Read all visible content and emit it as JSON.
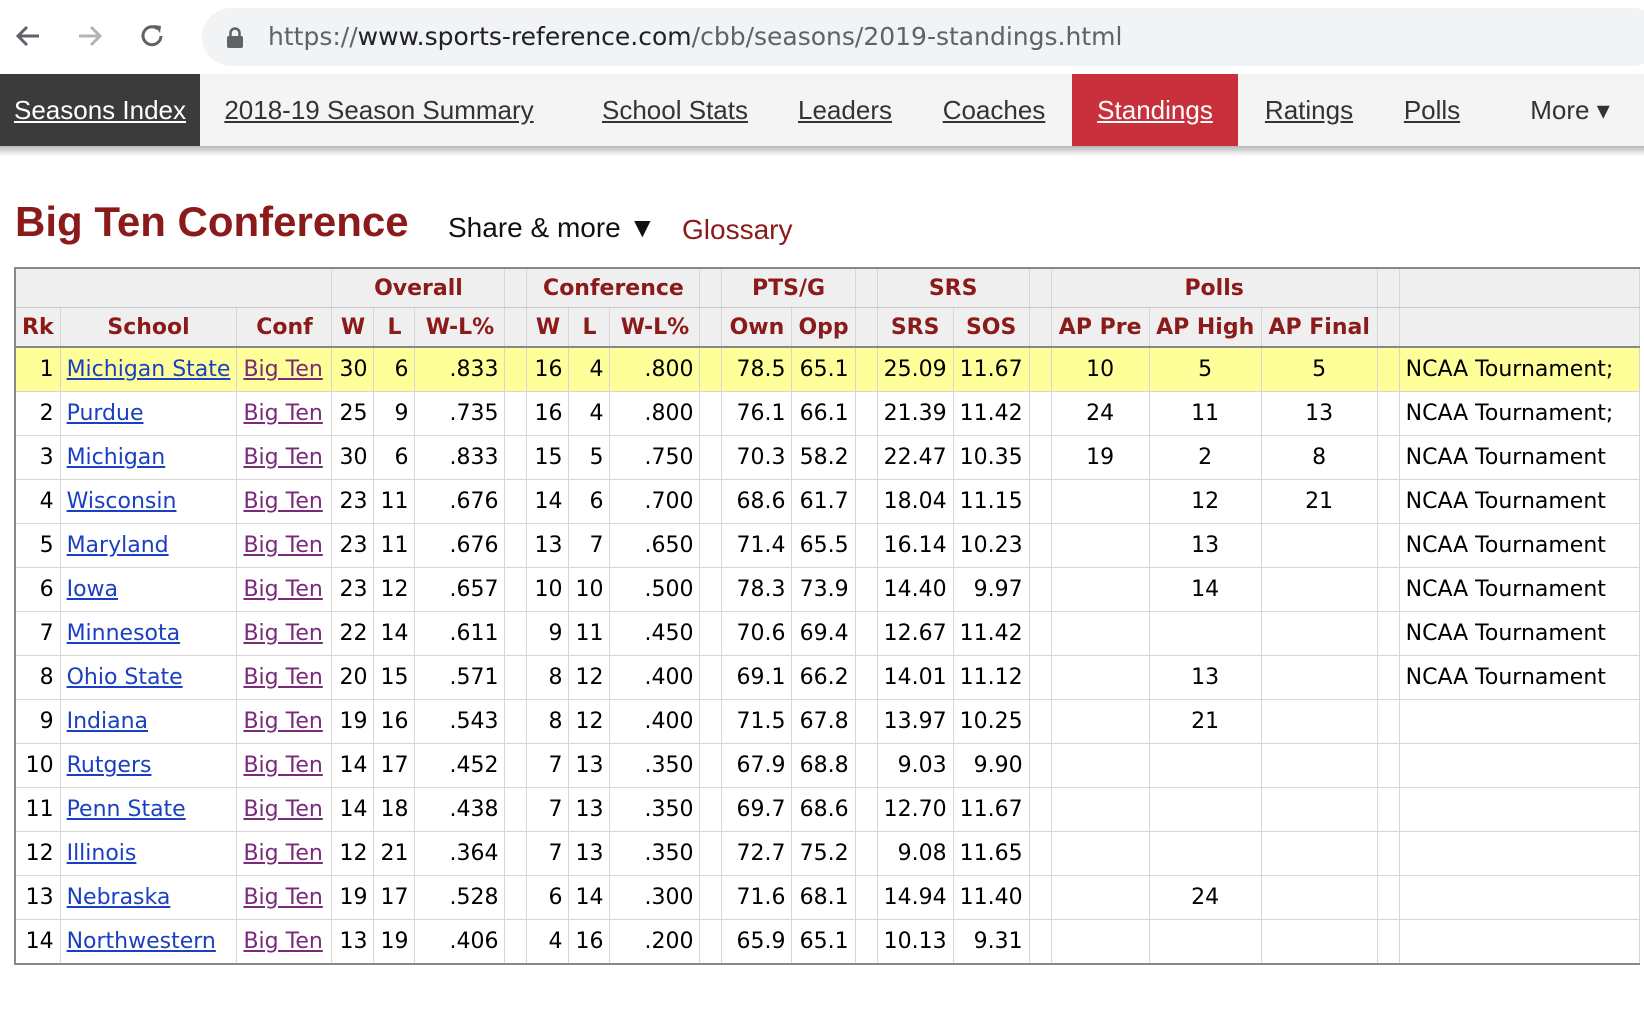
{
  "browser": {
    "url_scheme": "https://",
    "url_host": "www.sports-reference.com",
    "url_path": "/cbb/seasons/2019-standings.html"
  },
  "site_nav": [
    {
      "label": "Seasons Index"
    },
    {
      "label": "2018-19 Season Summary"
    },
    {
      "label": "School Stats"
    },
    {
      "label": "Leaders"
    },
    {
      "label": "Coaches"
    },
    {
      "label": "Standings",
      "active": true
    },
    {
      "label": "Ratings"
    },
    {
      "label": "Polls"
    },
    {
      "label": "More ▾"
    }
  ],
  "section": {
    "title": "Big Ten Conference",
    "share_label": "Share & more ▼",
    "glossary_label": "Glossary"
  },
  "table": {
    "group_headers": [
      "",
      "Overall",
      "",
      "Conference",
      "",
      "PTS/G",
      "",
      "SRS",
      "",
      "Polls",
      "",
      ""
    ],
    "columns": [
      "Rk",
      "School",
      "Conf",
      "W",
      "L",
      "W-L%",
      "",
      "W",
      "L",
      "W-L%",
      "",
      "Own",
      "Opp",
      "",
      "SRS",
      "SOS",
      "",
      "AP Pre",
      "AP High",
      "AP Final",
      "",
      ""
    ],
    "rows": [
      {
        "rk": "1",
        "school": "Michigan State",
        "conf": "Big Ten",
        "ow": "30",
        "ol": "6",
        "opct": ".833",
        "cw": "16",
        "cl": "4",
        "cpct": ".800",
        "own": "78.5",
        "opp": "65.1",
        "srs": "25.09",
        "sos": "11.67",
        "appre": "10",
        "aphigh": "5",
        "apfinal": "5",
        "notes": "NCAA Tournament;"
      },
      {
        "rk": "2",
        "school": "Purdue",
        "conf": "Big Ten",
        "ow": "25",
        "ol": "9",
        "opct": ".735",
        "cw": "16",
        "cl": "4",
        "cpct": ".800",
        "own": "76.1",
        "opp": "66.1",
        "srs": "21.39",
        "sos": "11.42",
        "appre": "24",
        "aphigh": "11",
        "apfinal": "13",
        "notes": "NCAA Tournament;"
      },
      {
        "rk": "3",
        "school": "Michigan",
        "conf": "Big Ten",
        "ow": "30",
        "ol": "6",
        "opct": ".833",
        "cw": "15",
        "cl": "5",
        "cpct": ".750",
        "own": "70.3",
        "opp": "58.2",
        "srs": "22.47",
        "sos": "10.35",
        "appre": "19",
        "aphigh": "2",
        "apfinal": "8",
        "notes": "NCAA Tournament"
      },
      {
        "rk": "4",
        "school": "Wisconsin",
        "conf": "Big Ten",
        "ow": "23",
        "ol": "11",
        "opct": ".676",
        "cw": "14",
        "cl": "6",
        "cpct": ".700",
        "own": "68.6",
        "opp": "61.7",
        "srs": "18.04",
        "sos": "11.15",
        "appre": "",
        "aphigh": "12",
        "apfinal": "21",
        "notes": "NCAA Tournament"
      },
      {
        "rk": "5",
        "school": "Maryland",
        "conf": "Big Ten",
        "ow": "23",
        "ol": "11",
        "opct": ".676",
        "cw": "13",
        "cl": "7",
        "cpct": ".650",
        "own": "71.4",
        "opp": "65.5",
        "srs": "16.14",
        "sos": "10.23",
        "appre": "",
        "aphigh": "13",
        "apfinal": "",
        "notes": "NCAA Tournament"
      },
      {
        "rk": "6",
        "school": "Iowa",
        "conf": "Big Ten",
        "ow": "23",
        "ol": "12",
        "opct": ".657",
        "cw": "10",
        "cl": "10",
        "cpct": ".500",
        "own": "78.3",
        "opp": "73.9",
        "srs": "14.40",
        "sos": "9.97",
        "appre": "",
        "aphigh": "14",
        "apfinal": "",
        "notes": "NCAA Tournament"
      },
      {
        "rk": "7",
        "school": "Minnesota",
        "conf": "Big Ten",
        "ow": "22",
        "ol": "14",
        "opct": ".611",
        "cw": "9",
        "cl": "11",
        "cpct": ".450",
        "own": "70.6",
        "opp": "69.4",
        "srs": "12.67",
        "sos": "11.42",
        "appre": "",
        "aphigh": "",
        "apfinal": "",
        "notes": "NCAA Tournament"
      },
      {
        "rk": "8",
        "school": "Ohio State",
        "conf": "Big Ten",
        "ow": "20",
        "ol": "15",
        "opct": ".571",
        "cw": "8",
        "cl": "12",
        "cpct": ".400",
        "own": "69.1",
        "opp": "66.2",
        "srs": "14.01",
        "sos": "11.12",
        "appre": "",
        "aphigh": "13",
        "apfinal": "",
        "notes": "NCAA Tournament"
      },
      {
        "rk": "9",
        "school": "Indiana",
        "conf": "Big Ten",
        "ow": "19",
        "ol": "16",
        "opct": ".543",
        "cw": "8",
        "cl": "12",
        "cpct": ".400",
        "own": "71.5",
        "opp": "67.8",
        "srs": "13.97",
        "sos": "10.25",
        "appre": "",
        "aphigh": "21",
        "apfinal": "",
        "notes": ""
      },
      {
        "rk": "10",
        "school": "Rutgers",
        "conf": "Big Ten",
        "ow": "14",
        "ol": "17",
        "opct": ".452",
        "cw": "7",
        "cl": "13",
        "cpct": ".350",
        "own": "67.9",
        "opp": "68.8",
        "srs": "9.03",
        "sos": "9.90",
        "appre": "",
        "aphigh": "",
        "apfinal": "",
        "notes": ""
      },
      {
        "rk": "11",
        "school": "Penn State",
        "conf": "Big Ten",
        "ow": "14",
        "ol": "18",
        "opct": ".438",
        "cw": "7",
        "cl": "13",
        "cpct": ".350",
        "own": "69.7",
        "opp": "68.6",
        "srs": "12.70",
        "sos": "11.67",
        "appre": "",
        "aphigh": "",
        "apfinal": "",
        "notes": ""
      },
      {
        "rk": "12",
        "school": "Illinois",
        "conf": "Big Ten",
        "ow": "12",
        "ol": "21",
        "opct": ".364",
        "cw": "7",
        "cl": "13",
        "cpct": ".350",
        "own": "72.7",
        "opp": "75.2",
        "srs": "9.08",
        "sos": "11.65",
        "appre": "",
        "aphigh": "",
        "apfinal": "",
        "notes": ""
      },
      {
        "rk": "13",
        "school": "Nebraska",
        "conf": "Big Ten",
        "ow": "19",
        "ol": "17",
        "opct": ".528",
        "cw": "6",
        "cl": "14",
        "cpct": ".300",
        "own": "71.6",
        "opp": "68.1",
        "srs": "14.94",
        "sos": "11.40",
        "appre": "",
        "aphigh": "24",
        "apfinal": "",
        "notes": ""
      },
      {
        "rk": "14",
        "school": "Northwestern",
        "conf": "Big Ten",
        "ow": "13",
        "ol": "19",
        "opct": ".406",
        "cw": "4",
        "cl": "16",
        "cpct": ".200",
        "own": "65.9",
        "opp": "65.1",
        "srs": "10.13",
        "sos": "9.31",
        "appre": "",
        "aphigh": "",
        "apfinal": "",
        "notes": ""
      }
    ]
  },
  "colors": {
    "accent_red": "#8b1a1a",
    "active_tab": "#c8313b",
    "highlight_row": "#ffff99",
    "link_blue": "#1a3fc2",
    "link_visited": "#7a2a7a"
  }
}
